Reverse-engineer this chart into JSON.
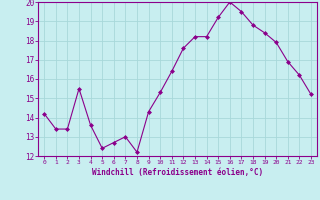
{
  "x": [
    0,
    1,
    2,
    3,
    4,
    5,
    6,
    7,
    8,
    9,
    10,
    11,
    12,
    13,
    14,
    15,
    16,
    17,
    18,
    19,
    20,
    21,
    22,
    23
  ],
  "y": [
    14.2,
    13.4,
    13.4,
    15.5,
    13.6,
    12.4,
    12.7,
    13.0,
    12.2,
    14.3,
    15.3,
    16.4,
    17.6,
    18.2,
    18.2,
    19.2,
    20.0,
    19.5,
    18.8,
    18.4,
    17.9,
    16.9,
    16.2,
    15.2
  ],
  "line_color": "#8B008B",
  "marker": "D",
  "marker_size": 2,
  "bg_color": "#C8EEF0",
  "grid_color": "#A8D8DA",
  "xlabel": "Windchill (Refroidissement éolien,°C)",
  "xlabel_color": "#8B008B",
  "tick_color": "#8B008B",
  "spine_color": "#8B008B",
  "ylim": [
    12,
    20
  ],
  "xlim": [
    -0.5,
    23.5
  ],
  "yticks": [
    12,
    13,
    14,
    15,
    16,
    17,
    18,
    19,
    20
  ],
  "xticks": [
    0,
    1,
    2,
    3,
    4,
    5,
    6,
    7,
    8,
    9,
    10,
    11,
    12,
    13,
    14,
    15,
    16,
    17,
    18,
    19,
    20,
    21,
    22,
    23
  ]
}
